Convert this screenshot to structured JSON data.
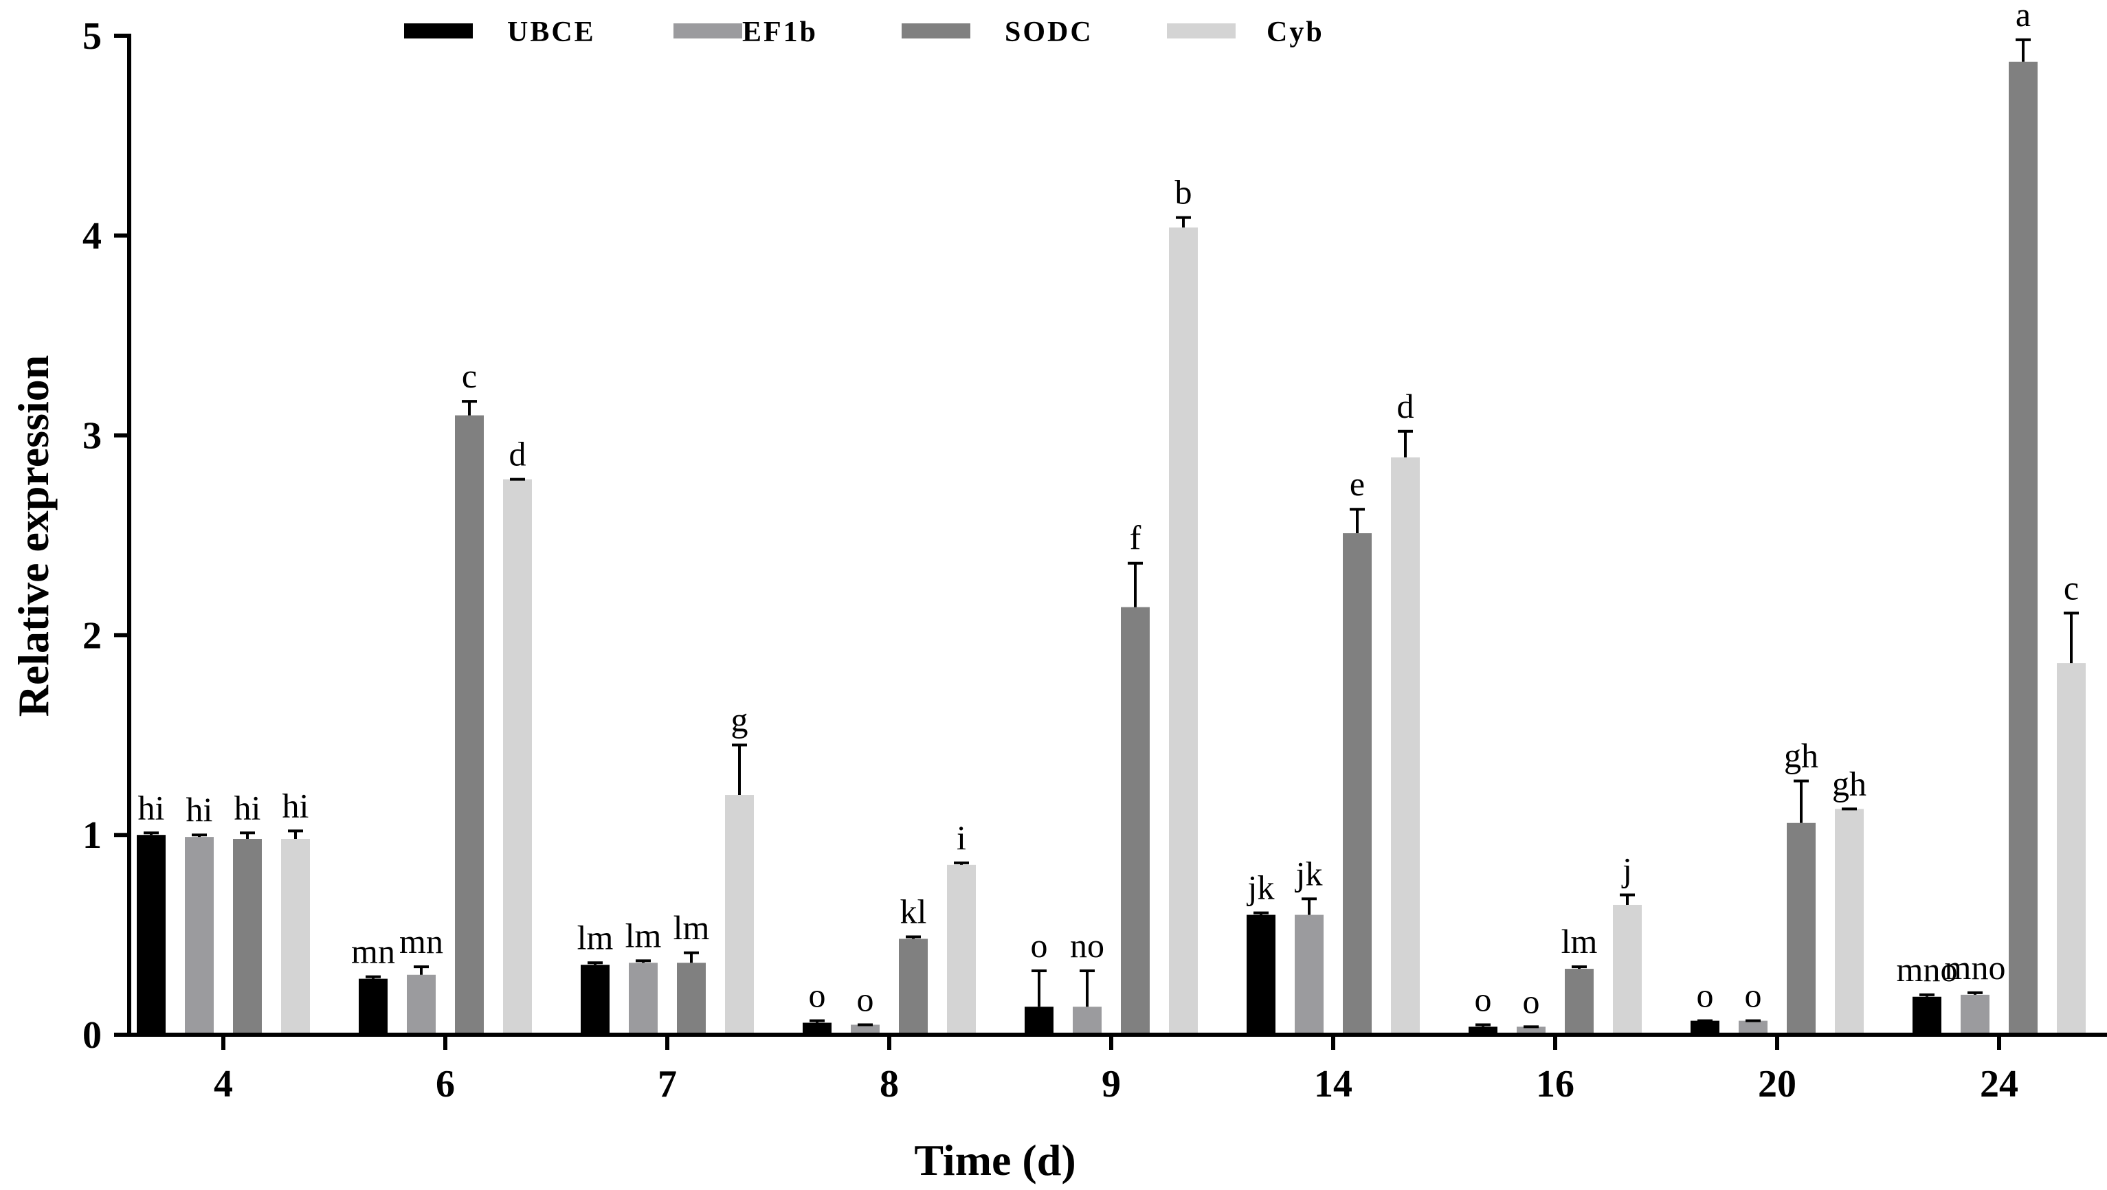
{
  "chart_data": {
    "type": "bar",
    "title": "",
    "xlabel": "Time (d)",
    "ylabel": "Relative expression",
    "ylim": [
      0,
      5
    ],
    "yticks": [
      0,
      1,
      2,
      3,
      4,
      5
    ],
    "grid": false,
    "legend_position": "top",
    "categories": [
      "4",
      "6",
      "7",
      "8",
      "9",
      "14",
      "16",
      "20",
      "24"
    ],
    "series": [
      {
        "name": "UBCE",
        "color": "#000000",
        "values": [
          1.0,
          0.28,
          0.35,
          0.06,
          0.14,
          0.6,
          0.04,
          0.07,
          0.19
        ],
        "errors": [
          0.01,
          0.01,
          0.01,
          0.01,
          0.18,
          0.01,
          0.01,
          0.0,
          0.01
        ],
        "labels": [
          "hi",
          "mn",
          "lm",
          "o",
          "o",
          "jk",
          "o",
          "o",
          "mno"
        ]
      },
      {
        "name": "EF1b",
        "color": "#9b9b9e",
        "values": [
          0.99,
          0.3,
          0.36,
          0.05,
          0.14,
          0.6,
          0.04,
          0.07,
          0.2
        ],
        "errors": [
          0.01,
          0.04,
          0.01,
          0.0,
          0.18,
          0.08,
          0.0,
          0.0,
          0.01
        ],
        "labels": [
          "hi",
          "mn",
          "lm",
          "o",
          "no",
          "jk",
          "o",
          "o",
          "mno"
        ]
      },
      {
        "name": "SODC",
        "color": "#808080",
        "values": [
          0.98,
          3.1,
          0.36,
          0.48,
          2.14,
          2.51,
          0.33,
          1.06,
          4.87
        ],
        "errors": [
          0.03,
          0.07,
          0.05,
          0.01,
          0.22,
          0.12,
          0.01,
          0.21,
          0.11
        ],
        "labels": [
          "hi",
          "c",
          "lm",
          "kl",
          "f",
          "e",
          "lm",
          "gh",
          "a"
        ]
      },
      {
        "name": "Cyb",
        "color": "#d4d4d4",
        "values": [
          0.98,
          2.78,
          1.2,
          0.85,
          4.04,
          2.89,
          0.65,
          1.13,
          1.86
        ],
        "errors": [
          0.04,
          0.0,
          0.25,
          0.01,
          0.05,
          0.13,
          0.05,
          0.0,
          0.25
        ],
        "labels": [
          "hi",
          "d",
          "g",
          "i",
          "b",
          "d",
          "j",
          "gh",
          "c"
        ]
      }
    ]
  }
}
